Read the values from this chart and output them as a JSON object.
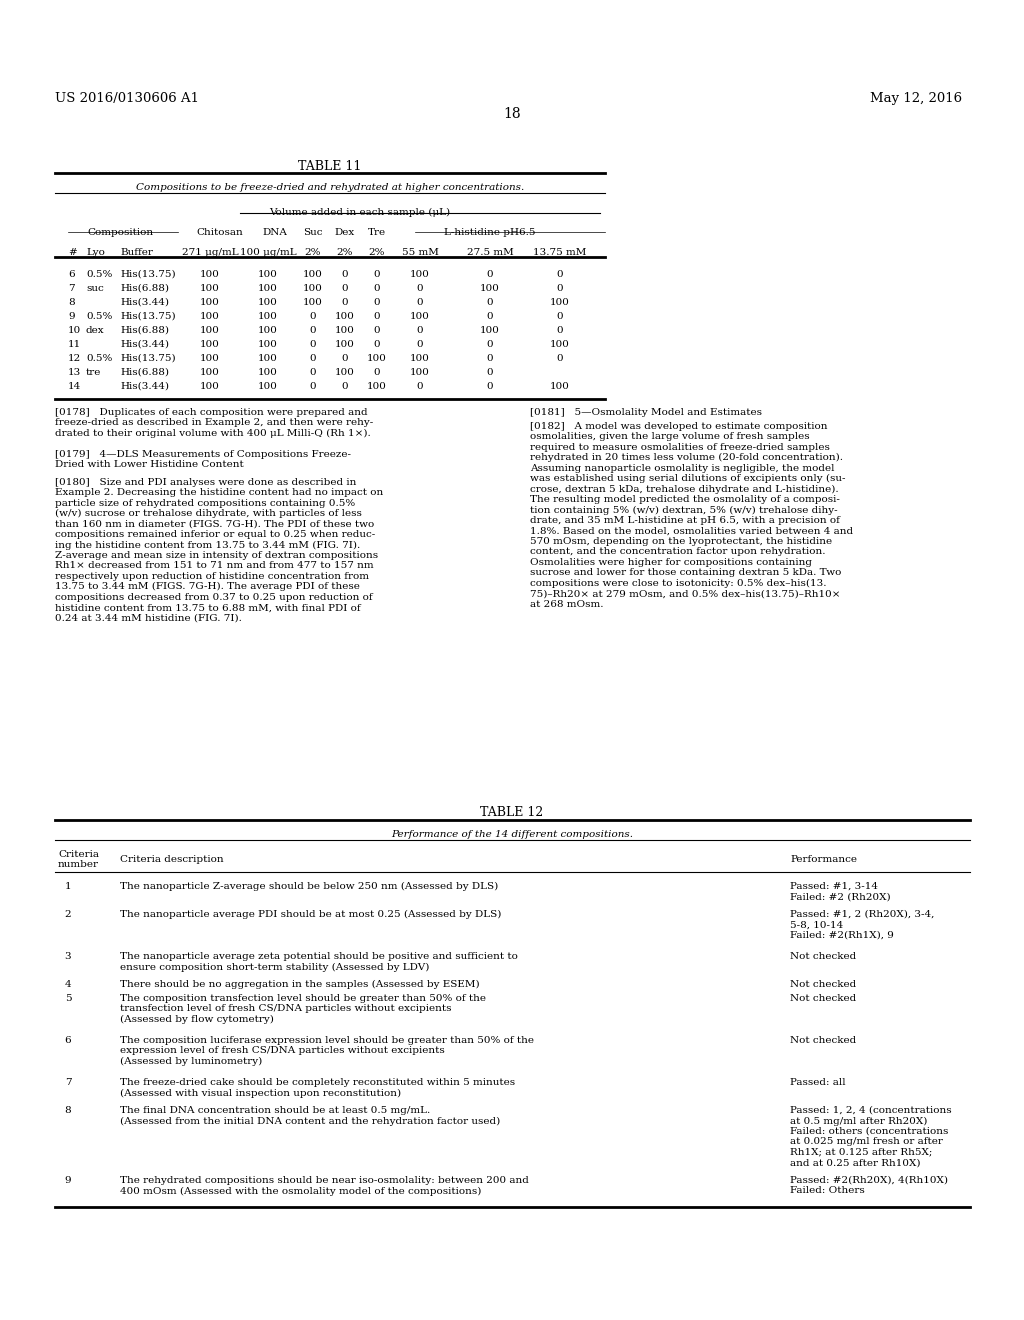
{
  "header_left": "US 2016/0130606 A1",
  "header_right": "May 12, 2016",
  "page_number": "18",
  "table11_title": "TABLE 11",
  "table11_subtitle": "Compositions to be freeze-dried and rehydrated at higher concentrations.",
  "table11_col_header1": "Volume added in each sample (μL)",
  "table11_comp_header": "Composition",
  "table11_chitosan_header": "Chitosan",
  "table11_dna_header": "DNA",
  "table11_suc_header": "Suc",
  "table11_dex_header": "Dex",
  "table11_tre_header": "Tre",
  "table11_lhis_header": "L-histidine pH6.5",
  "table11_row_headers": [
    "#",
    "Lyo",
    "Buffer",
    "271 μg/mL",
    "100 μg/mL",
    "2%",
    "2%",
    "2%",
    "55 mM",
    "27.5 mM",
    "13.75 mM"
  ],
  "table11_rows": [
    [
      "6",
      "0.5%",
      "His(13.75)",
      "100",
      "100",
      "100",
      "0",
      "0",
      "100",
      "0",
      "0"
    ],
    [
      "7",
      "suc",
      "His(6.88)",
      "100",
      "100",
      "100",
      "0",
      "0",
      "0",
      "100",
      "0"
    ],
    [
      "8",
      "",
      "His(3.44)",
      "100",
      "100",
      "100",
      "0",
      "0",
      "0",
      "0",
      "100"
    ],
    [
      "9",
      "0.5%",
      "His(13.75)",
      "100",
      "100",
      "0",
      "100",
      "0",
      "100",
      "0",
      "0"
    ],
    [
      "10",
      "dex",
      "His(6.88)",
      "100",
      "100",
      "0",
      "100",
      "0",
      "0",
      "100",
      "0"
    ],
    [
      "11",
      "",
      "His(3.44)",
      "100",
      "100",
      "0",
      "100",
      "0",
      "0",
      "0",
      "100"
    ],
    [
      "12",
      "0.5%",
      "His(13.75)",
      "100",
      "100",
      "0",
      "0",
      "100",
      "100",
      "0",
      "0"
    ],
    [
      "13",
      "tre",
      "His(6.88)",
      "100",
      "100",
      "0",
      "100",
      "0",
      "100",
      "0",
      ""
    ],
    [
      "14",
      "",
      "His(3.44)",
      "100",
      "100",
      "0",
      "0",
      "100",
      "0",
      "0",
      "100"
    ]
  ],
  "para_left": [
    "[0178]   Duplicates of each composition were prepared and\nfreeze-dried as described in Example 2, and then were rehy-\ndrated to their original volume with 400 μL Milli-Q (Rh 1×).",
    "[0179]   4—DLS Measurements of Compositions Freeze-\nDried with Lower Histidine Content",
    "[0180]   Size and PDI analyses were done as described in\nExample 2. Decreasing the histidine content had no impact on\nparticle size of rehydrated compositions containing 0.5%\n(w/v) sucrose or trehalose dihydrate, with particles of less\nthan 160 nm in diameter (FIGS. 7G-H). The PDI of these two\ncompositions remained inferior or equal to 0.25 when reduc-\ning the histidine content from 13.75 to 3.44 mM (FIG. 7I).\nZ-average and mean size in intensity of dextran compositions\nRh1× decreased from 151 to 71 nm and from 477 to 157 nm\nrespectively upon reduction of histidine concentration from\n13.75 to 3.44 mM (FIGS. 7G-H). The average PDI of these\ncompositions decreased from 0.37 to 0.25 upon reduction of\nhistidine content from 13.75 to 6.88 mM, with final PDI of\n0.24 at 3.44 mM histidine (FIG. 7I)."
  ],
  "para_right": [
    "[0181]   5—Osmolality Model and Estimates",
    "[0182]   A model was developed to estimate composition\nosmolalities, given the large volume of fresh samples\nrequired to measure osmolalities of freeze-dried samples\nrehydrated in 20 times less volume (20-fold concentration).\nAssuming nanoparticle osmolality is negligible, the model\nwas established using serial dilutions of excipients only (su-\ncrose, dextran 5 kDa, trehalose dihydrate and L-histidine).\nThe resulting model predicted the osmolality of a composi-\ntion containing 5% (w/v) dextran, 5% (w/v) trehalose dihy-\ndrate, and 35 mM L-histidine at pH 6.5, with a precision of\n1.8%. Based on the model, osmolalities varied between 4 and\n570 mOsm, depending on the lyoprotectant, the histidine\ncontent, and the concentration factor upon rehydration.\nOsmolalities were higher for compositions containing\nsucrose and lower for those containing dextran 5 kDa. Two\ncompositions were close to isotonicity: 0.5% dex–his(13.\n75)–Rh20× at 279 mOsm, and 0.5% dex–his(13.75)–Rh10×\nat 268 mOsm."
  ],
  "table12_title": "TABLE 12",
  "table12_subtitle": "Performance of the 14 different compositions.",
  "table12_col_headers": [
    "Criteria\nnumber",
    "Criteria description",
    "Performance"
  ],
  "table12_rows": [
    [
      "1",
      "The nanoparticle Z-average should be below 250 nm (Assessed by DLS)",
      "Passed: #1, 3-14\nFailed: #2 (Rh20X)"
    ],
    [
      "2",
      "The nanoparticle average PDI should be at most 0.25 (Assessed by DLS)",
      "Passed: #1, 2 (Rh20X), 3-4,\n5-8, 10-14\nFailed: #2(Rh1X), 9"
    ],
    [
      "3",
      "The nanoparticle average zeta potential should be positive and sufficient to\nensure composition short-term stability (Assessed by LDV)",
      "Not checked"
    ],
    [
      "4",
      "There should be no aggregation in the samples (Assessed by ESEM)",
      "Not checked"
    ],
    [
      "5",
      "The composition transfection level should be greater than 50% of the\ntransfection level of fresh CS/DNA particles without excipients\n(Assessed by flow cytometry)",
      "Not checked"
    ],
    [
      "6",
      "The composition luciferase expression level should be greater than 50% of the\nexpression level of fresh CS/DNA particles without excipients\n(Assessed by luminometry)",
      "Not checked"
    ],
    [
      "7",
      "The freeze-dried cake should be completely reconstituted within 5 minutes\n(Assessed with visual inspection upon reconstitution)",
      "Passed: all"
    ],
    [
      "8",
      "The final DNA concentration should be at least 0.5 mg/mL.\n(Assessed from the initial DNA content and the rehydration factor used)",
      "Passed: 1, 2, 4 (concentrations\nat 0.5 mg/ml after Rh20X)\nFailed: others (concentrations\nat 0.025 mg/ml fresh or after\nRh1X; at 0.125 after Rh5X;\nand at 0.25 after Rh10X)"
    ],
    [
      "9",
      "The rehydrated compositions should be near iso-osmolality: between 200 and\n400 mOsm (Assessed with the osmolality model of the compositions)",
      "Passed: #2(Rh20X), 4(Rh10X)\nFailed: Others"
    ]
  ],
  "bg_color": "#ffffff",
  "text_color": "#000000",
  "font_size": 7.5
}
